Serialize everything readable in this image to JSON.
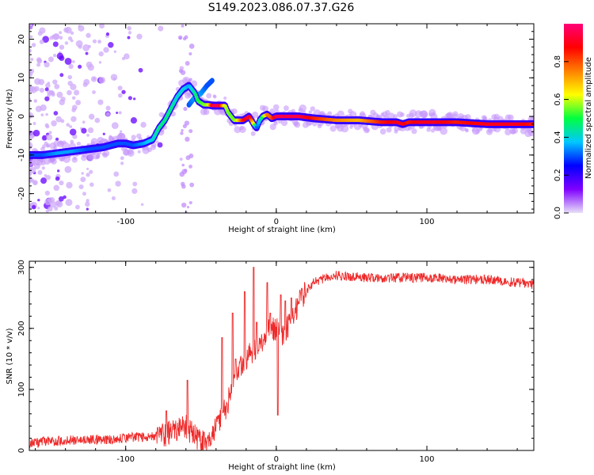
{
  "title": "S149.2023.086.07.37.G26",
  "chart_data": [
    {
      "type": "heatmap",
      "xlabel": "Height of straight line (km)",
      "ylabel": "Frequency (Hz)",
      "xlim": [
        -164,
        171
      ],
      "ylim": [
        -25,
        24
      ],
      "xticks": [
        -100,
        0,
        100
      ],
      "yticks": [
        -20,
        -10,
        0,
        10,
        20
      ],
      "colorbar": {
        "label": "Normalized spectral amplitude",
        "range": [
          0,
          1
        ],
        "ticks": [
          0.0,
          0.2,
          0.4,
          0.6,
          0.8
        ],
        "colors": [
          "#e8e0f8",
          "#8000ff",
          "#0000ff",
          "#00c8ff",
          "#00ff40",
          "#ffff00",
          "#ff8000",
          "#ff0000",
          "#ff0078"
        ]
      },
      "ridge": {
        "x": [
          -164,
          -155,
          -145,
          -135,
          -125,
          -115,
          -105,
          -100,
          -95,
          -88,
          -82,
          -78,
          -74,
          -70,
          -66,
          -62,
          -58,
          -54,
          -52,
          -48,
          -45,
          -42,
          -38,
          -34,
          -32,
          -28,
          -26,
          -22,
          -18,
          -15,
          -13,
          -11,
          -9,
          -6,
          -3,
          0,
          5,
          15,
          25,
          40,
          55,
          70,
          80,
          84,
          88,
          95,
          105,
          120,
          140,
          160,
          171
        ],
        "y": [
          -10,
          -10,
          -9.5,
          -9,
          -8.5,
          -8,
          -7,
          -7,
          -7.5,
          -7,
          -6,
          -3,
          -1,
          2,
          5,
          7,
          8,
          6,
          4,
          3,
          3,
          2.8,
          2.8,
          2.8,
          1,
          -1,
          -1,
          -1,
          0,
          -2,
          -3,
          -1,
          0,
          0.5,
          -0.5,
          0,
          0,
          0,
          -0.5,
          -1,
          -1,
          -1.5,
          -1.5,
          -2,
          -1.5,
          -1.5,
          -1.5,
          -1.5,
          -2,
          -2,
          -2
        ],
        "amp": [
          0.3,
          0.3,
          0.35,
          0.35,
          0.3,
          0.3,
          0.3,
          0.3,
          0.3,
          0.35,
          0.4,
          0.45,
          0.45,
          0.45,
          0.4,
          0.4,
          0.35,
          0.45,
          0.5,
          0.55,
          0.6,
          0.95,
          0.95,
          0.6,
          0.55,
          0.55,
          0.6,
          0.85,
          0.95,
          0.6,
          0.3,
          0.4,
          0.5,
          0.75,
          0.8,
          0.95,
          0.95,
          0.95,
          0.85,
          0.75,
          0.7,
          0.85,
          0.9,
          0.9,
          0.85,
          0.9,
          0.9,
          0.85,
          0.9,
          0.9,
          0.85
        ]
      },
      "upper_branch": {
        "x": [
          -58,
          -54,
          -50,
          -46,
          -42
        ],
        "y": [
          3,
          5,
          6,
          8,
          9.5
        ],
        "amp": [
          0.3,
          0.35,
          0.35,
          0.3,
          0.3
        ]
      }
    },
    {
      "type": "line",
      "xlabel": "Height of straight line (km)",
      "ylabel": "SNR (10 * v/v)",
      "xlim": [
        -164,
        171
      ],
      "ylim": [
        0,
        310
      ],
      "xticks": [
        -100,
        0,
        100
      ],
      "yticks": [
        0,
        100,
        200,
        300
      ],
      "color": "#ee2a2a",
      "x": [
        -164,
        -150,
        -130,
        -110,
        -95,
        -85,
        -75,
        -70,
        -65,
        -60,
        -55,
        -50,
        -45,
        -40,
        -35,
        -30,
        -25,
        -20,
        -15,
        -10,
        -5,
        0,
        5,
        10,
        15,
        20,
        25,
        30,
        40,
        60,
        80,
        100,
        120,
        140,
        160,
        171
      ],
      "y": [
        12,
        15,
        18,
        18,
        22,
        22,
        25,
        30,
        35,
        40,
        25,
        15,
        18,
        35,
        60,
        95,
        130,
        150,
        165,
        175,
        195,
        200,
        190,
        215,
        240,
        262,
        275,
        280,
        287,
        283,
        283,
        283,
        280,
        280,
        275,
        272
      ],
      "spikes": [
        {
          "x": -73,
          "y": 65
        },
        {
          "x": -59,
          "y": 115
        },
        {
          "x": -48,
          "y": 30
        },
        {
          "x": -36,
          "y": 185
        },
        {
          "x": -29,
          "y": 225
        },
        {
          "x": -27,
          "y": 150
        },
        {
          "x": -21,
          "y": 260
        },
        {
          "x": -15,
          "y": 300
        },
        {
          "x": -13,
          "y": 210
        },
        {
          "x": -6,
          "y": 275
        },
        {
          "x": -4,
          "y": 225
        },
        {
          "x": 1,
          "y": 58
        },
        {
          "x": 3,
          "y": 255
        },
        {
          "x": 6,
          "y": 245
        },
        {
          "x": 10,
          "y": 250
        }
      ],
      "noise": 8
    }
  ]
}
